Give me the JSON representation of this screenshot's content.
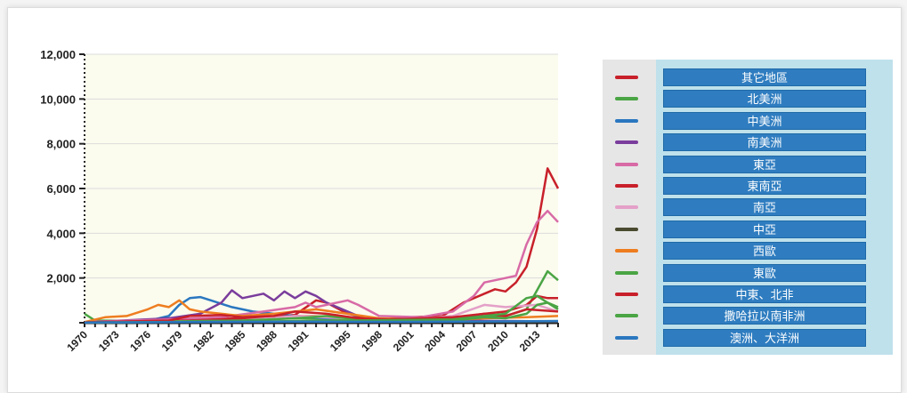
{
  "chart_data": {
    "type": "line",
    "title": "",
    "xlabel": "",
    "ylabel": "",
    "ylim": [
      0,
      12000
    ],
    "xlim": [
      1970,
      2015
    ],
    "yticks": [
      0,
      2000,
      4000,
      6000,
      8000,
      10000,
      12000
    ],
    "ytick_labels": [
      "",
      "2,000",
      "4,000",
      "6,000",
      "8,000",
      "10,000",
      "12,000"
    ],
    "xticks": [
      1970,
      1973,
      1976,
      1979,
      1982,
      1985,
      1988,
      1991,
      1995,
      1998,
      2001,
      2004,
      2007,
      2010,
      2013
    ],
    "grid": true,
    "legend_position": "right",
    "series": [
      {
        "name": "其它地區",
        "color": "#c8202a",
        "points": [
          [
            1970,
            30
          ],
          [
            1975,
            80
          ],
          [
            1980,
            150
          ],
          [
            1985,
            200
          ],
          [
            1990,
            350
          ],
          [
            1992,
            1000
          ],
          [
            1993,
            900
          ],
          [
            1995,
            400
          ],
          [
            1998,
            150
          ],
          [
            2001,
            250
          ],
          [
            2004,
            300
          ],
          [
            2006,
            900
          ],
          [
            2008,
            1300
          ],
          [
            2009,
            1500
          ],
          [
            2010,
            1400
          ],
          [
            2011,
            1800
          ],
          [
            2012,
            2500
          ],
          [
            2013,
            4200
          ],
          [
            2014,
            6900
          ],
          [
            2015,
            6000
          ]
        ]
      },
      {
        "name": "北美洲",
        "color": "#4aa544",
        "points": [
          [
            1970,
            400
          ],
          [
            1971,
            100
          ],
          [
            1975,
            80
          ],
          [
            1980,
            100
          ],
          [
            1985,
            150
          ],
          [
            1990,
            200
          ],
          [
            1995,
            150
          ],
          [
            2000,
            100
          ],
          [
            2005,
            150
          ],
          [
            2010,
            300
          ],
          [
            2012,
            600
          ],
          [
            2014,
            2300
          ],
          [
            2015,
            1900
          ]
        ]
      },
      {
        "name": "中美洲",
        "color": "#2a77c0",
        "points": [
          [
            1970,
            20
          ],
          [
            1976,
            80
          ],
          [
            1978,
            300
          ],
          [
            1979,
            800
          ],
          [
            1980,
            1100
          ],
          [
            1981,
            1150
          ],
          [
            1982,
            1000
          ],
          [
            1984,
            700
          ],
          [
            1986,
            500
          ],
          [
            1988,
            400
          ],
          [
            1990,
            300
          ],
          [
            1993,
            200
          ],
          [
            1996,
            250
          ],
          [
            1998,
            100
          ],
          [
            2002,
            80
          ],
          [
            2008,
            60
          ],
          [
            2015,
            50
          ]
        ]
      },
      {
        "name": "南美洲",
        "color": "#7a3d9c",
        "points": [
          [
            1970,
            20
          ],
          [
            1978,
            200
          ],
          [
            1981,
            400
          ],
          [
            1983,
            900
          ],
          [
            1984,
            1450
          ],
          [
            1985,
            1100
          ],
          [
            1986,
            1200
          ],
          [
            1987,
            1300
          ],
          [
            1988,
            1000
          ],
          [
            1989,
            1400
          ],
          [
            1990,
            1100
          ],
          [
            1991,
            1400
          ],
          [
            1992,
            1200
          ],
          [
            1993,
            900
          ],
          [
            1995,
            500
          ],
          [
            1996,
            300
          ],
          [
            1998,
            150
          ],
          [
            2002,
            100
          ],
          [
            2010,
            80
          ],
          [
            2015,
            60
          ]
        ]
      },
      {
        "name": "東亞",
        "color": "#d86aa6",
        "points": [
          [
            1970,
            30
          ],
          [
            1978,
            150
          ],
          [
            1983,
            250
          ],
          [
            1987,
            500
          ],
          [
            1990,
            700
          ],
          [
            1991,
            900
          ],
          [
            1992,
            700
          ],
          [
            1995,
            1000
          ],
          [
            1996,
            800
          ],
          [
            1998,
            300
          ],
          [
            2002,
            250
          ],
          [
            2005,
            500
          ],
          [
            2007,
            1200
          ],
          [
            2008,
            1800
          ],
          [
            2009,
            1900
          ],
          [
            2010,
            2000
          ],
          [
            2011,
            2100
          ],
          [
            2012,
            3500
          ],
          [
            2013,
            4500
          ],
          [
            2014,
            5000
          ],
          [
            2015,
            4500
          ]
        ]
      },
      {
        "name": "東南亞",
        "color": "#c8202a",
        "points": [
          [
            1970,
            20
          ],
          [
            1980,
            100
          ],
          [
            1985,
            200
          ],
          [
            1990,
            300
          ],
          [
            1995,
            250
          ],
          [
            2000,
            150
          ],
          [
            2005,
            200
          ],
          [
            2008,
            400
          ],
          [
            2010,
            500
          ],
          [
            2012,
            800
          ],
          [
            2013,
            1200
          ],
          [
            2014,
            1100
          ],
          [
            2015,
            1100
          ]
        ]
      },
      {
        "name": "南亞",
        "color": "#e4a0c8",
        "points": [
          [
            1970,
            10
          ],
          [
            1985,
            100
          ],
          [
            1990,
            300
          ],
          [
            1995,
            200
          ],
          [
            2000,
            100
          ],
          [
            2005,
            300
          ],
          [
            2008,
            800
          ],
          [
            2010,
            700
          ],
          [
            2013,
            800
          ],
          [
            2015,
            500
          ]
        ]
      },
      {
        "name": "中亞",
        "color": "#4a4a30",
        "points": [
          [
            1970,
            10
          ],
          [
            1990,
            50
          ],
          [
            2000,
            40
          ],
          [
            2015,
            60
          ]
        ]
      },
      {
        "name": "西歐",
        "color": "#ee7d20",
        "points": [
          [
            1970,
            30
          ],
          [
            1972,
            250
          ],
          [
            1974,
            300
          ],
          [
            1976,
            600
          ],
          [
            1977,
            800
          ],
          [
            1978,
            700
          ],
          [
            1979,
            1000
          ],
          [
            1980,
            600
          ],
          [
            1981,
            500
          ],
          [
            1983,
            400
          ],
          [
            1985,
            300
          ],
          [
            1988,
            400
          ],
          [
            1990,
            500
          ],
          [
            1992,
            600
          ],
          [
            1995,
            400
          ],
          [
            1998,
            200
          ],
          [
            2001,
            150
          ],
          [
            2004,
            100
          ],
          [
            2008,
            200
          ],
          [
            2012,
            250
          ],
          [
            2015,
            300
          ]
        ]
      },
      {
        "name": "東歐",
        "color": "#4aa544",
        "points": [
          [
            1970,
            10
          ],
          [
            1985,
            100
          ],
          [
            1990,
            200
          ],
          [
            1993,
            300
          ],
          [
            1995,
            200
          ],
          [
            2000,
            100
          ],
          [
            2005,
            100
          ],
          [
            2008,
            250
          ],
          [
            2010,
            200
          ],
          [
            2012,
            400
          ],
          [
            2013,
            800
          ],
          [
            2014,
            900
          ],
          [
            2015,
            600
          ]
        ]
      },
      {
        "name": "中東、北非",
        "color": "#c8202a",
        "points": [
          [
            1970,
            20
          ],
          [
            1978,
            100
          ],
          [
            1980,
            300
          ],
          [
            1983,
            350
          ],
          [
            1985,
            250
          ],
          [
            1988,
            300
          ],
          [
            1990,
            500
          ],
          [
            1993,
            400
          ],
          [
            1996,
            200
          ],
          [
            1999,
            150
          ],
          [
            2002,
            200
          ],
          [
            2005,
            250
          ],
          [
            2008,
            400
          ],
          [
            2010,
            300
          ],
          [
            2012,
            600
          ],
          [
            2015,
            500
          ]
        ]
      },
      {
        "name": "撒哈拉以南非洲",
        "color": "#4aa544",
        "points": [
          [
            1970,
            10
          ],
          [
            1985,
            50
          ],
          [
            1995,
            100
          ],
          [
            2005,
            150
          ],
          [
            2010,
            400
          ],
          [
            2012,
            1100
          ],
          [
            2013,
            1200
          ],
          [
            2014,
            900
          ],
          [
            2015,
            700
          ]
        ]
      },
      {
        "name": "澳洲、大洋洲",
        "color": "#2a77c0",
        "points": [
          [
            1970,
            10
          ],
          [
            1990,
            50
          ],
          [
            2000,
            40
          ],
          [
            2010,
            60
          ],
          [
            2015,
            80
          ]
        ]
      }
    ]
  }
}
